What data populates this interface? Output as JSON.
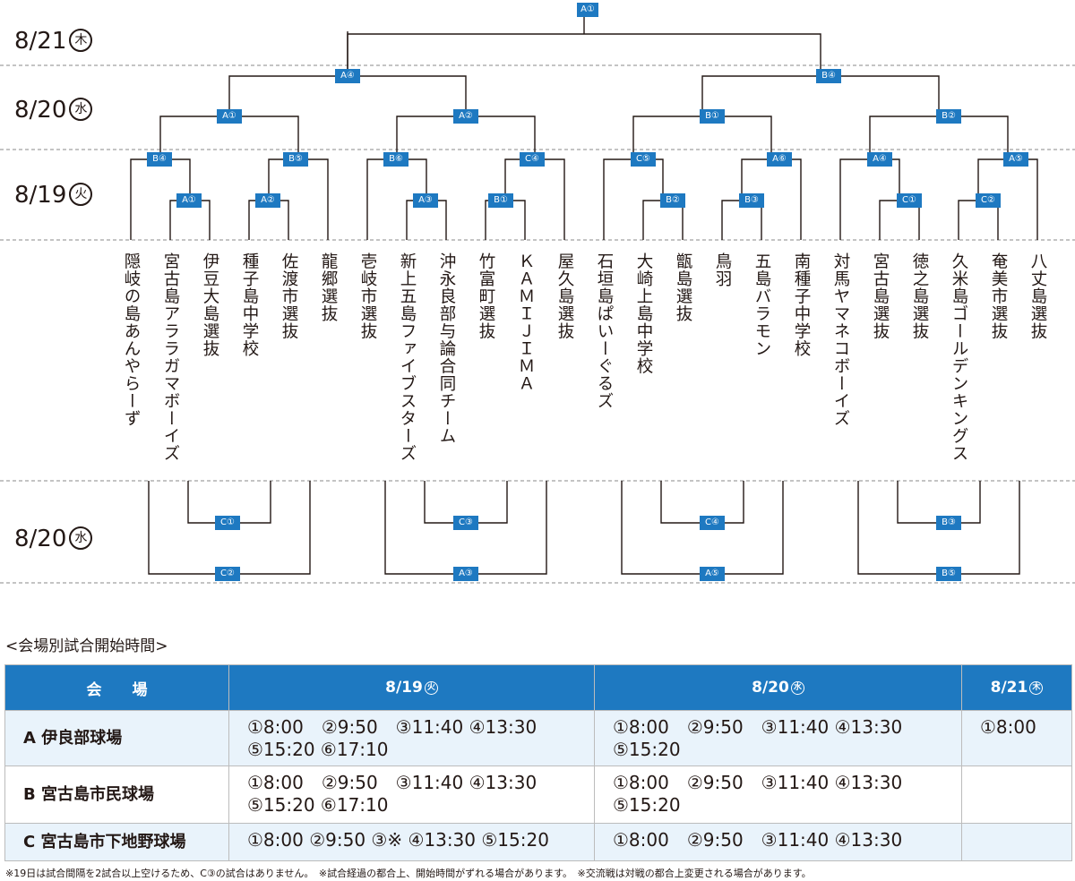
{
  "bracket": {
    "days": [
      {
        "date": "8/21",
        "weekday": "木"
      },
      {
        "date": "8/20",
        "weekday": "水"
      },
      {
        "date": "8/19",
        "weekday": "火"
      },
      {
        "date": "8/20",
        "weekday": "水"
      }
    ],
    "teams": [
      "隠岐の島あんやらーず",
      "宮古島アララガマボーイズ",
      "伊豆大島選抜",
      "種子島中学校",
      "佐渡市選抜",
      "龍郷選抜",
      "壱岐市選抜",
      "新上五島ファイブスターズ",
      "沖永良部与論合同チーム",
      "竹富町選抜",
      "ＫＡＭＩＪＩＭＡ",
      "屋久島選抜",
      "石垣島ぱいーぐるズ",
      "大崎上島中学校",
      "甑島選抜",
      "鳥羽",
      "五島バラモン",
      "南種子中学校",
      "対馬ヤマネコボーイズ",
      "宮古島選抜",
      "徳之島選抜",
      "久米島ゴールデンキングス",
      "奄美市選抜",
      "八丈島選抜"
    ],
    "r1": [
      "A①",
      "A②",
      "B①",
      "B②",
      "C①",
      "C②"
    ],
    "r2": [
      "B④",
      "B⑤",
      "B⑥",
      "C④",
      "C⑤",
      "A⑥",
      "A④",
      "A⑤"
    ],
    "r3": [
      "A①",
      "A②",
      "B①",
      "B②"
    ],
    "r4": [
      "A④",
      "B④"
    ],
    "final": "A①",
    "consolation": [
      {
        "inner": "C①",
        "outer": "C②"
      },
      {
        "inner": "C③",
        "outer": "A③"
      },
      {
        "inner": "C④",
        "outer": "A⑤"
      },
      {
        "inner": "B③",
        "outer": "B⑤"
      }
    ]
  },
  "schedule": {
    "title": "<会場別試合開始時間>",
    "headers": {
      "venue": "会　　場",
      "d1": "8/19",
      "d1_wk": "火",
      "d2": "8/20",
      "d2_wk": "水",
      "d3": "8/21",
      "d3_wk": "木"
    },
    "rows": [
      {
        "venue": "A 伊良部球場",
        "d1": [
          "①8:00　②9:50　③11:40 ④13:30",
          "⑤15:20 ⑥17:10"
        ],
        "d2": [
          "①8:00　②9:50　③11:40 ④13:30",
          "⑤15:20"
        ],
        "d3": [
          "①8:00"
        ]
      },
      {
        "venue": "B 宮古島市民球場",
        "d1": [
          "①8:00　②9:50　③11:40 ④13:30",
          "⑤15:20 ⑥17:10"
        ],
        "d2": [
          "①8:00　②9:50　③11:40 ④13:30",
          "⑤15:20"
        ],
        "d3": []
      },
      {
        "venue": "C 宮古島市下地野球場",
        "d1": [
          "①8:00 ②9:50 ③※ ④13:30 ⑤15:20"
        ],
        "d2": [
          "①8:00　②9:50　③11:40 ④13:30"
        ],
        "d3": []
      }
    ]
  },
  "footnote": "※19日は試合間隔を2試合以上空けるため、C③の試合はありません。　※試合経過の都合上、開始時間がずれる場合があります。　※交流戦は対戦の都合上変更される場合があります。"
}
